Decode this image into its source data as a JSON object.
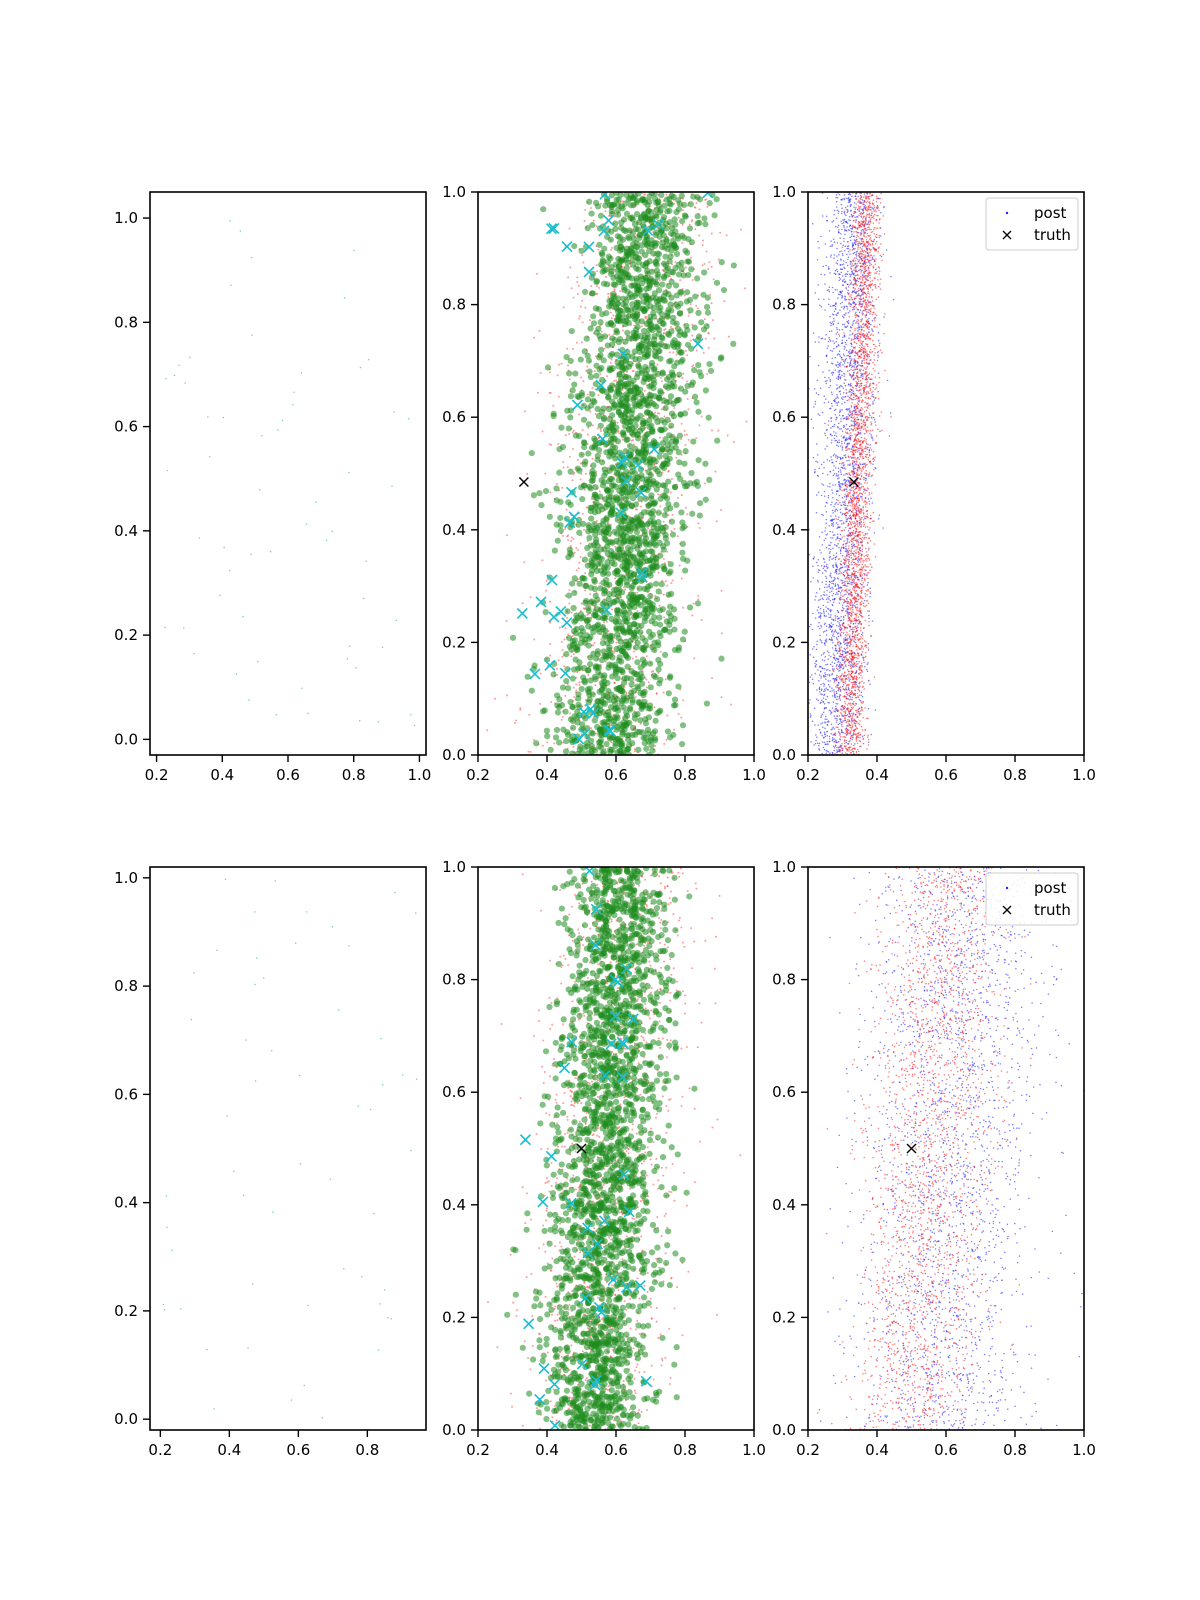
{
  "chart_data": [
    {
      "panel": "row1-left",
      "type": "scatter",
      "xlim": [
        0.18,
        1.02
      ],
      "ylim": [
        -0.03,
        1.05
      ],
      "xticks": [
        "0.2",
        "0.4",
        "0.6",
        "0.8",
        "1.0"
      ],
      "xtick_values": [
        0.2,
        0.4,
        0.6,
        0.8,
        1.0
      ],
      "yticks": [
        "0.0",
        "0.2",
        "0.4",
        "0.6",
        "0.8",
        "1.0"
      ],
      "ytick_values": [
        0,
        0.2,
        0.4,
        0.6,
        0.8,
        1.0
      ],
      "series": [
        {
          "style": "tiny-dots",
          "color": "#2ca58d",
          "seed": 11,
          "n": 60,
          "dist": {
            "kind": "uniform",
            "x0": 0.2,
            "x1": 1.0,
            "y0": 0.0,
            "y1": 1.0
          }
        }
      ]
    },
    {
      "panel": "row1-mid",
      "type": "scatter",
      "xlim": [
        0.2,
        1.0
      ],
      "ylim": [
        0.0,
        1.0
      ],
      "xticks": [
        "0.2",
        "0.4",
        "0.6",
        "0.8",
        "1.0"
      ],
      "xtick_values": [
        0.2,
        0.4,
        0.6,
        0.8,
        1.0
      ],
      "yticks": [
        "0.0",
        "0.2",
        "0.4",
        "0.6",
        "0.8",
        "1.0"
      ],
      "ytick_values": [
        0,
        0.2,
        0.4,
        0.6,
        0.8,
        1.0
      ],
      "series": [
        {
          "style": "small-dots",
          "color": "#ff3b3b",
          "seed": 21,
          "n": 1400,
          "dist": {
            "kind": "gauss",
            "mx0": 0.56,
            "mx1": 0.7,
            "sx": 0.11,
            "y0": 0.0,
            "y1": 1.0
          }
        },
        {
          "style": "big-dots",
          "color": "#1e8c1e",
          "seed": 22,
          "n": 2300,
          "dist": {
            "kind": "gauss",
            "mx0": 0.58,
            "mx1": 0.7,
            "sx": 0.085,
            "y0": 0.0,
            "y1": 1.0
          }
        },
        {
          "style": "cross",
          "color": "#17becf",
          "seed": 23,
          "n": 45,
          "dist": {
            "kind": "gauss",
            "mx0": 0.52,
            "mx1": 0.64,
            "sx": 0.1,
            "y0": 0.0,
            "y1": 1.0
          }
        }
      ],
      "truth": {
        "x": 0.333,
        "y": 0.485
      }
    },
    {
      "panel": "row1-right",
      "type": "scatter",
      "xlim": [
        0.2,
        1.0
      ],
      "ylim": [
        0.0,
        1.0
      ],
      "xticks": [
        "0.2",
        "0.4",
        "0.6",
        "0.8",
        "1.0"
      ],
      "xtick_values": [
        0.2,
        0.4,
        0.6,
        0.8,
        1.0
      ],
      "yticks": [
        "0.0",
        "0.2",
        "0.4",
        "0.6",
        "0.8",
        "1.0"
      ],
      "ytick_values": [
        0,
        0.2,
        0.4,
        0.6,
        0.8,
        1.0
      ],
      "series": [
        {
          "style": "tiny-dots",
          "color": "#2222ff",
          "seed": 31,
          "n": 2600,
          "dist": {
            "kind": "gauss",
            "mx0": 0.28,
            "mx1": 0.33,
            "sx": 0.04,
            "y0": 0.0,
            "y1": 1.0
          }
        },
        {
          "style": "tiny-dots",
          "color": "#ff1a1a",
          "seed": 32,
          "n": 2600,
          "dist": {
            "kind": "gauss",
            "mx0": 0.32,
            "mx1": 0.37,
            "sx": 0.022,
            "y0": 0.0,
            "y1": 1.0
          }
        }
      ],
      "truth": {
        "x": 0.333,
        "y": 0.485
      },
      "legend": {
        "position": "top-right",
        "entries": [
          "post",
          "truth"
        ]
      }
    },
    {
      "panel": "row2-left",
      "type": "scatter",
      "xlim": [
        0.17,
        0.97
      ],
      "ylim": [
        -0.02,
        1.02
      ],
      "xticks": [
        "0.2",
        "0.4",
        "0.6",
        "0.8"
      ],
      "xtick_values": [
        0.2,
        0.4,
        0.6,
        0.8
      ],
      "yticks": [
        "0.0",
        "0.2",
        "0.4",
        "0.6",
        "0.8",
        "1.0"
      ],
      "ytick_values": [
        0,
        0.2,
        0.4,
        0.6,
        0.8,
        1.0
      ],
      "series": [
        {
          "style": "tiny-dots",
          "color": "#2ca58d",
          "seed": 41,
          "n": 55,
          "dist": {
            "kind": "uniform",
            "x0": 0.2,
            "x1": 0.95,
            "y0": 0.0,
            "y1": 1.0
          }
        }
      ]
    },
    {
      "panel": "row2-mid",
      "type": "scatter",
      "xlim": [
        0.2,
        1.0
      ],
      "ylim": [
        0.0,
        1.0
      ],
      "xticks": [
        "0.2",
        "0.4",
        "0.6",
        "0.8",
        "1.0"
      ],
      "xtick_values": [
        0.2,
        0.4,
        0.6,
        0.8,
        1.0
      ],
      "yticks": [
        "0.0",
        "0.2",
        "0.4",
        "0.6",
        "0.8",
        "1.0"
      ],
      "ytick_values": [
        0,
        0.2,
        0.4,
        0.6,
        0.8,
        1.0
      ],
      "series": [
        {
          "style": "small-dots",
          "color": "#ff3b3b",
          "seed": 51,
          "n": 1400,
          "dist": {
            "kind": "gauss",
            "mx0": 0.52,
            "mx1": 0.64,
            "sx": 0.1,
            "y0": 0.0,
            "y1": 1.0
          }
        },
        {
          "style": "big-dots",
          "color": "#1e8c1e",
          "seed": 52,
          "n": 2300,
          "dist": {
            "kind": "gauss",
            "mx0": 0.53,
            "mx1": 0.62,
            "sx": 0.075,
            "y0": 0.0,
            "y1": 1.0
          }
        },
        {
          "style": "cross",
          "color": "#17becf",
          "seed": 53,
          "n": 40,
          "dist": {
            "kind": "gauss",
            "mx0": 0.48,
            "mx1": 0.62,
            "sx": 0.09,
            "y0": 0.0,
            "y1": 1.0
          }
        }
      ],
      "truth": {
        "x": 0.5,
        "y": 0.5
      }
    },
    {
      "panel": "row2-right",
      "type": "scatter",
      "xlim": [
        0.2,
        1.0
      ],
      "ylim": [
        0.0,
        1.0
      ],
      "xticks": [
        "0.2",
        "0.4",
        "0.6",
        "0.8",
        "1.0"
      ],
      "xtick_values": [
        0.2,
        0.4,
        0.6,
        0.8,
        1.0
      ],
      "yticks": [
        "0.0",
        "0.2",
        "0.4",
        "0.6",
        "0.8",
        "1.0"
      ],
      "ytick_values": [
        0,
        0.2,
        0.4,
        0.6,
        0.8,
        1.0
      ],
      "series": [
        {
          "style": "tiny-dots",
          "color": "#2222ff",
          "seed": 61,
          "n": 2200,
          "dist": {
            "kind": "gauss",
            "mx0": 0.58,
            "mx1": 0.66,
            "sx": 0.13,
            "y0": 0.0,
            "y1": 1.0
          }
        },
        {
          "style": "tiny-dots",
          "color": "#ff1a1a",
          "seed": 62,
          "n": 2200,
          "dist": {
            "kind": "gauss",
            "mx0": 0.5,
            "mx1": 0.6,
            "sx": 0.09,
            "y0": 0.0,
            "y1": 1.0
          }
        }
      ],
      "truth": {
        "x": 0.5,
        "y": 0.5
      },
      "legend": {
        "position": "top-right",
        "entries": [
          "post",
          "truth"
        ]
      }
    }
  ]
}
